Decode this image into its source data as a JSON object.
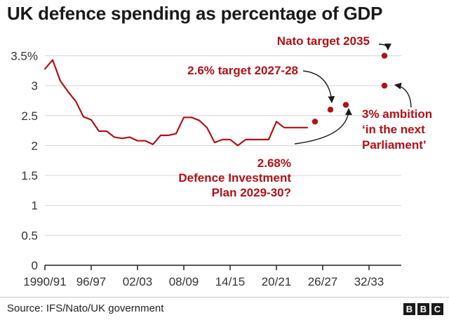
{
  "chart_data": {
    "type": "line",
    "title": "UK defence spending as percentage of GDP",
    "xlabel": "",
    "ylabel": "",
    "ylim": [
      0,
      3.5
    ],
    "y_ticks": [
      0,
      0.5,
      1,
      1.5,
      2,
      2.5,
      3,
      3.5
    ],
    "y_tick_labels": [
      "0",
      "0.5",
      "1",
      "1.5",
      "2",
      "2.5",
      "3",
      "3.5%"
    ],
    "x_tick_labels": [
      "1990/91",
      "96/97",
      "02/03",
      "08/09",
      "14/15",
      "20/21",
      "26/27",
      "32/33"
    ],
    "x_tick_years": [
      1990,
      1996,
      2002,
      2008,
      2014,
      2020,
      2026,
      2032
    ],
    "xlim": [
      1990,
      2035
    ],
    "grid": true,
    "legend": "none",
    "series": [
      {
        "x": [
          1990,
          1991,
          1992,
          1993,
          1994,
          1995,
          1996,
          1997,
          1998,
          1999,
          2000,
          2001,
          2002,
          2003,
          2004,
          2005,
          2006,
          2007,
          2008,
          2009,
          2010,
          2011,
          2012,
          2013,
          2014,
          2015,
          2016,
          2017,
          2018,
          2019,
          2020,
          2021,
          2022,
          2023,
          2024
        ],
        "values": [
          3.28,
          3.43,
          3.08,
          2.9,
          2.74,
          2.48,
          2.43,
          2.24,
          2.24,
          2.14,
          2.12,
          2.14,
          2.08,
          2.08,
          2.02,
          2.17,
          2.17,
          2.2,
          2.47,
          2.47,
          2.42,
          2.3,
          2.05,
          2.1,
          2.1,
          2.0,
          2.1,
          2.1,
          2.1,
          2.1,
          2.4,
          2.3,
          2.3,
          2.3,
          2.3
        ]
      }
    ],
    "points": [
      {
        "x": 2025,
        "y": 2.4,
        "label": ""
      },
      {
        "x": 2027,
        "y": 2.6,
        "label": "2.6% target 2027-28"
      },
      {
        "x": 2029,
        "y": 2.68,
        "label": "2.68% Defence Investment Plan 2029-30?"
      },
      {
        "x": 2034,
        "y": 3.0,
        "label": "3% ambition ‘in the next Parliament’"
      },
      {
        "x": 2034,
        "y": 3.5,
        "label": "Nato target 2035"
      }
    ],
    "annotations": [
      {
        "lines": [
          "Nato target 2035"
        ]
      },
      {
        "lines": [
          "2.6% target 2027-28"
        ]
      },
      {
        "lines": [
          "2.68%",
          "Defence Investment",
          "Plan 2029-30?"
        ]
      },
      {
        "lines": [
          "3% ambition",
          "‘in the next",
          "Parliament’"
        ]
      }
    ],
    "colors": {
      "line": "#b01116",
      "grid": "#d4d4d4",
      "axis": "#222222"
    }
  },
  "footer": {
    "source": "Source: IFS/Nato/UK government",
    "logo_letters": [
      "B",
      "B",
      "C"
    ]
  }
}
